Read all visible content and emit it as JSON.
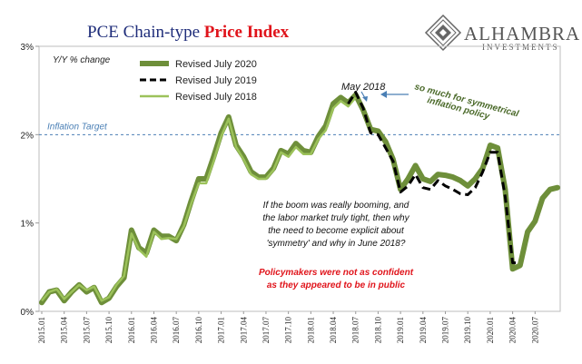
{
  "title": {
    "part1": "PCE Chain-type ",
    "part2": "Price Index"
  },
  "logo": {
    "name": "ALHAMBRA",
    "sub": "INVESTMENTS"
  },
  "colors": {
    "title_blue": "#1f2d7a",
    "title_red": "#e0141b",
    "series_2020": "#6e8f3a",
    "series_2019": "#000000",
    "series_2018": "#9cc25a",
    "target_line": "#4a7fb5"
  },
  "chart_data": {
    "type": "line",
    "unit_label": "Y/Y % change",
    "ylim": [
      0,
      3
    ],
    "yticks": [
      "0%",
      "1%",
      "2%",
      "3%"
    ],
    "x": [
      "2015.01",
      "2015.02",
      "2015.03",
      "2015.04",
      "2015.05",
      "2015.06",
      "2015.07",
      "2015.08",
      "2015.09",
      "2015.10",
      "2015.11",
      "2015.12",
      "2016.01",
      "2016.02",
      "2016.03",
      "2016.04",
      "2016.05",
      "2016.06",
      "2016.07",
      "2016.08",
      "2016.09",
      "2016.10",
      "2016.11",
      "2016.12",
      "2017.01",
      "2017.02",
      "2017.03",
      "2017.04",
      "2017.05",
      "2017.06",
      "2017.07",
      "2017.08",
      "2017.09",
      "2017.10",
      "2017.11",
      "2017.12",
      "2018.01",
      "2018.02",
      "2018.03",
      "2018.04",
      "2018.05",
      "2018.06",
      "2018.07",
      "2018.08",
      "2018.09",
      "2018.10",
      "2018.11",
      "2018.12",
      "2019.01",
      "2019.02",
      "2019.03",
      "2019.04",
      "2019.05",
      "2019.06",
      "2019.07",
      "2019.08",
      "2019.09",
      "2019.10",
      "2019.11",
      "2019.12",
      "2020.01",
      "2020.02",
      "2020.03",
      "2020.04",
      "2020.05",
      "2020.06",
      "2020.07",
      "2020.08",
      "2020.09",
      "2020.10"
    ],
    "xtick_labels": [
      "2015.01",
      "2015.04",
      "2015.07",
      "2015.10",
      "2016.01",
      "2016.04",
      "2016.07",
      "2016.10",
      "2017.01",
      "2017.04",
      "2017.07",
      "2017.10",
      "2018.01",
      "2018.04",
      "2018.07",
      "2018.10",
      "2019.01",
      "2019.04",
      "2019.07",
      "2019.10",
      "2020.01",
      "2020.04",
      "2020.07"
    ],
    "inflation_target": 2.0,
    "inflation_target_label": "Inflation Target",
    "series": [
      {
        "name": "Revised July 2020",
        "style": "thick-solid",
        "values": [
          0.1,
          0.22,
          0.24,
          0.12,
          0.22,
          0.3,
          0.22,
          0.27,
          0.1,
          0.15,
          0.28,
          0.38,
          0.92,
          0.72,
          0.66,
          0.92,
          0.85,
          0.85,
          0.8,
          0.98,
          1.25,
          1.5,
          1.5,
          1.75,
          2.02,
          2.2,
          1.88,
          1.75,
          1.58,
          1.52,
          1.52,
          1.62,
          1.82,
          1.78,
          1.9,
          1.82,
          1.8,
          1.98,
          2.1,
          2.35,
          2.42,
          2.36,
          2.45,
          2.28,
          2.06,
          2.04,
          1.92,
          1.72,
          1.38,
          1.5,
          1.65,
          1.5,
          1.47,
          1.55,
          1.54,
          1.52,
          1.48,
          1.42,
          1.5,
          1.62,
          1.88,
          1.85,
          1.38,
          0.48,
          0.52,
          0.9,
          1.02,
          1.28,
          1.38,
          1.4
        ]
      },
      {
        "name": "Revised July 2019",
        "style": "dashed",
        "values": [
          null,
          null,
          null,
          null,
          null,
          null,
          null,
          null,
          null,
          null,
          null,
          null,
          null,
          null,
          null,
          null,
          null,
          null,
          null,
          null,
          null,
          null,
          null,
          null,
          null,
          null,
          null,
          null,
          null,
          null,
          null,
          null,
          null,
          null,
          null,
          null,
          null,
          null,
          null,
          null,
          null,
          2.35,
          2.48,
          2.3,
          2.02,
          2.0,
          1.85,
          1.7,
          1.35,
          1.42,
          1.55,
          1.4,
          1.38,
          1.48,
          1.42,
          1.38,
          1.33,
          1.32,
          1.4,
          1.58,
          1.8,
          1.8,
          1.3,
          0.55,
          0.55,
          null,
          null,
          null,
          null,
          null
        ]
      },
      {
        "name": "Revised July 2018",
        "style": "thin-solid",
        "values": [
          0.12,
          0.22,
          0.25,
          0.14,
          0.22,
          0.3,
          0.24,
          0.28,
          0.12,
          0.16,
          0.3,
          0.4,
          0.88,
          0.7,
          0.62,
          0.9,
          0.82,
          0.83,
          0.82,
          0.96,
          1.22,
          1.45,
          1.45,
          1.7,
          1.98,
          2.18,
          1.86,
          1.72,
          1.55,
          1.5,
          1.5,
          1.6,
          1.8,
          1.75,
          1.86,
          1.78,
          1.78,
          1.95,
          2.05,
          2.3,
          2.38,
          2.32,
          2.42,
          null,
          null,
          null,
          null,
          null,
          null,
          null,
          null,
          null,
          null,
          null,
          null,
          null,
          null,
          null,
          null,
          null,
          null,
          null,
          null,
          null,
          null,
          null,
          null,
          null,
          null,
          null
        ]
      }
    ],
    "annotations": {
      "may2018": "May 2018",
      "symmetric_1": "so much for symmetrical",
      "symmetric_2": "inflation policy",
      "boom_1": "If the boom was really booming, and",
      "boom_2": "the labor market truly tight, then why",
      "boom_3": "the need to become explicit about",
      "boom_4": "'symmetry' and why in June 2018?",
      "policy_1": "Policymakers were not as confident",
      "policy_2": "as they appeared to be in public"
    }
  }
}
